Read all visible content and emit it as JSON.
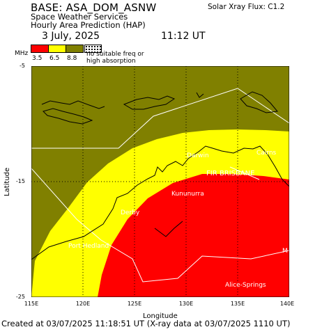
{
  "header": {
    "base": "BASE: ASA_DOM_ASNW",
    "service": "Space Weather Services",
    "product": "Hourly Area Prediction (HAP)",
    "date": "3 July, 2025",
    "time": "11:12 UT",
    "flux": "Solar Xray Flux: C1.2"
  },
  "legend": {
    "unit": "MHz",
    "colors": [
      "#ff0000",
      "#ffff00",
      "#808000"
    ],
    "values": [
      "3.5",
      "6.5",
      "8.8"
    ],
    "note_line1": "no suitable freq or",
    "note_line2": "high absorption"
  },
  "axes": {
    "xlabel": "Longitude",
    "ylabel": "Latitude",
    "xticks": [
      "115E",
      "120E",
      "125E",
      "130E",
      "135E",
      "140E"
    ],
    "yticks": [
      "-5",
      "-15",
      "-25"
    ]
  },
  "places": {
    "darwin": "Darwin",
    "cairns": "Cairns",
    "fir": "FIR BRISBANE",
    "kununurra": "Kununurra",
    "derby": "Derby",
    "port_hedland": "Port Hedland",
    "alice_springs": "Alice-Springs",
    "m": "M"
  },
  "footer": "Created at 03/07/2025 11:18:51 UT (X-ray data at 03/07/2025 1110 UT)"
}
